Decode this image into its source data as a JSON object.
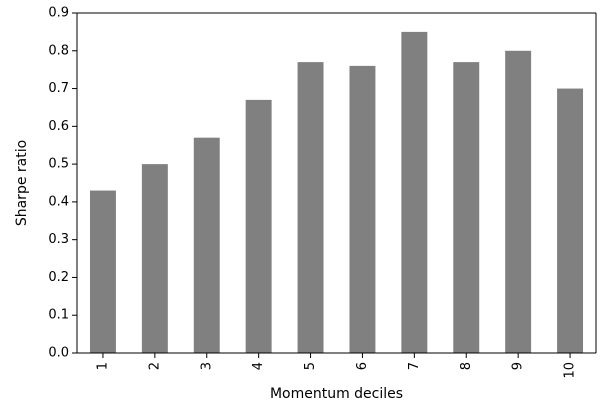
{
  "chart_data": {
    "type": "bar",
    "title": "",
    "xlabel": "Momentum deciles",
    "ylabel": "Sharpe ratio",
    "categories": [
      "1",
      "2",
      "3",
      "4",
      "5",
      "6",
      "7",
      "8",
      "9",
      "10"
    ],
    "values": [
      0.43,
      0.5,
      0.57,
      0.67,
      0.77,
      0.76,
      0.85,
      0.77,
      0.8,
      0.7
    ],
    "ylim": [
      0,
      0.9
    ],
    "yticks": [
      "0.0",
      "0.1",
      "0.2",
      "0.3",
      "0.4",
      "0.5",
      "0.6",
      "0.7",
      "0.8",
      "0.9"
    ],
    "bar_color": "#808080",
    "grid": false,
    "legend": "none",
    "xtick_rotation_deg": 90
  }
}
